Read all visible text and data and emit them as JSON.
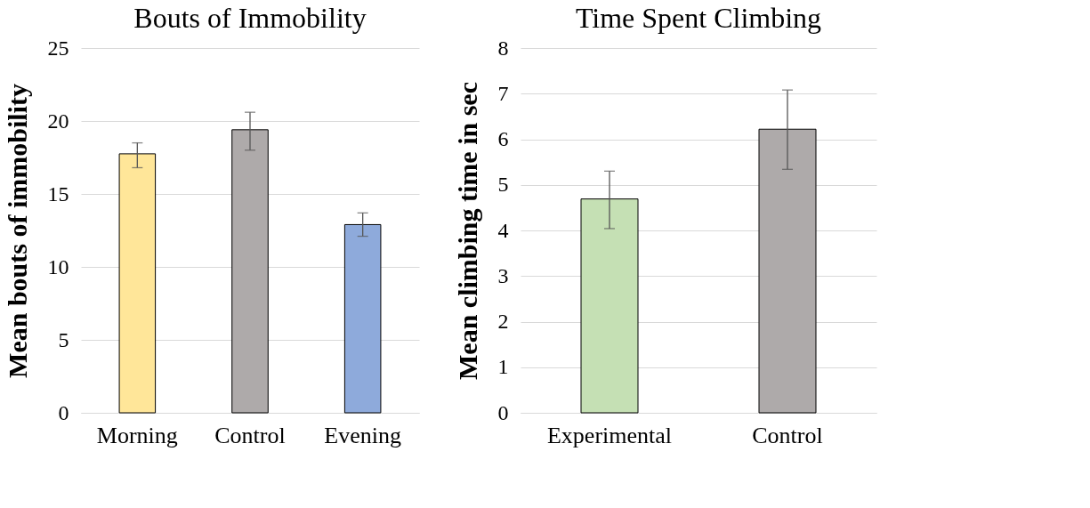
{
  "chart_data": [
    {
      "type": "bar",
      "title": "Bouts of Immobility",
      "ylabel": "Mean bouts of immobility",
      "categories": [
        "Morning",
        "Control",
        "Evening"
      ],
      "values": [
        17.75,
        19.4,
        12.9
      ],
      "colors": [
        "#ffe699",
        "#aeaaaa",
        "#8eaadb"
      ],
      "errors": [
        [
          16.8,
          18.5
        ],
        [
          18.0,
          20.6
        ],
        [
          12.1,
          13.7
        ]
      ],
      "ylim": [
        0,
        25
      ],
      "yticks": [
        0,
        5,
        10,
        15,
        20,
        25
      ],
      "grid": "y",
      "legend": false
    },
    {
      "type": "bar",
      "title": "Time Spent Climbing",
      "ylabel": "Mean climbing time in sec",
      "categories": [
        "Experimental",
        "Control"
      ],
      "values": [
        4.69,
        6.22
      ],
      "colors": [
        "#c5e0b4",
        "#aeaaaa"
      ],
      "errors": [
        [
          4.04,
          5.3
        ],
        [
          5.34,
          7.08
        ]
      ],
      "ylim": [
        0,
        8
      ],
      "yticks": [
        0,
        1,
        2,
        3,
        4,
        5,
        6,
        7,
        8
      ],
      "grid": "y",
      "legend": false
    }
  ]
}
